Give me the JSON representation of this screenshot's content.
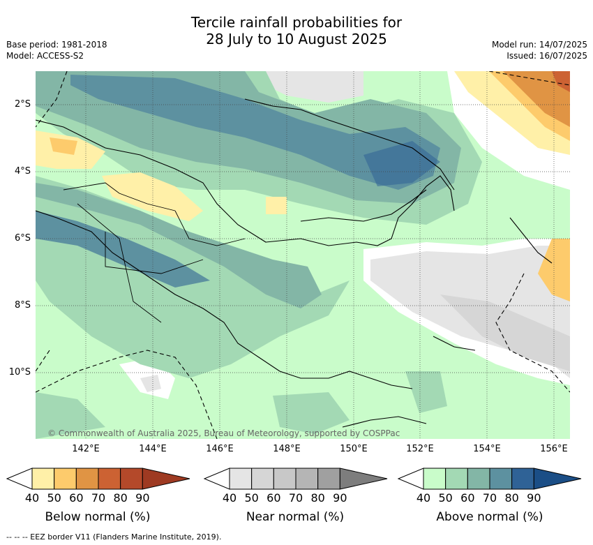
{
  "title_line1": "Tercile rainfall probabilities for",
  "title_line2": "28 July to 10 August 2025",
  "meta_left": [
    "Base period: 1981-2018",
    "Model: ACCESS-S2"
  ],
  "meta_right": [
    "Model run: 14/07/2025",
    "Issued: 16/07/2025"
  ],
  "lat_labels": [
    "2°S",
    "4°S",
    "6°S",
    "8°S",
    "10°S"
  ],
  "lon_labels": [
    "142°E",
    "144°E",
    "146°E",
    "148°E",
    "150°E",
    "152°E",
    "154°E",
    "156°E"
  ],
  "copyright": "© Commonwealth of Australia 2025, Bureau of Meteorology, supported by COSPPac",
  "colorbars": [
    {
      "label": "Below normal (%)",
      "ticks": [
        "40",
        "50",
        "60",
        "70",
        "80",
        "90"
      ],
      "colors": [
        "#fff0a8",
        "#fdcb6c",
        "#e09444",
        "#cc6233",
        "#b4492a",
        "#9e3a22"
      ]
    },
    {
      "label": "Near normal (%)",
      "ticks": [
        "40",
        "50",
        "60",
        "70",
        "80",
        "90"
      ],
      "colors": [
        "#e5e5e5",
        "#d6d6d6",
        "#c8c8c8",
        "#b5b5b5",
        "#a0a0a0",
        "#7d7d7d"
      ]
    },
    {
      "label": "Above normal (%)",
      "ticks": [
        "40",
        "50",
        "60",
        "70",
        "80",
        "90"
      ],
      "colors": [
        "#c9fcca",
        "#a3d9b4",
        "#83b6a6",
        "#5d91a0",
        "#2f6296",
        "#1b4e86"
      ]
    }
  ],
  "footer": "-- -- -- EEZ border V11 (Flanders Marine Institute, 2019)."
}
